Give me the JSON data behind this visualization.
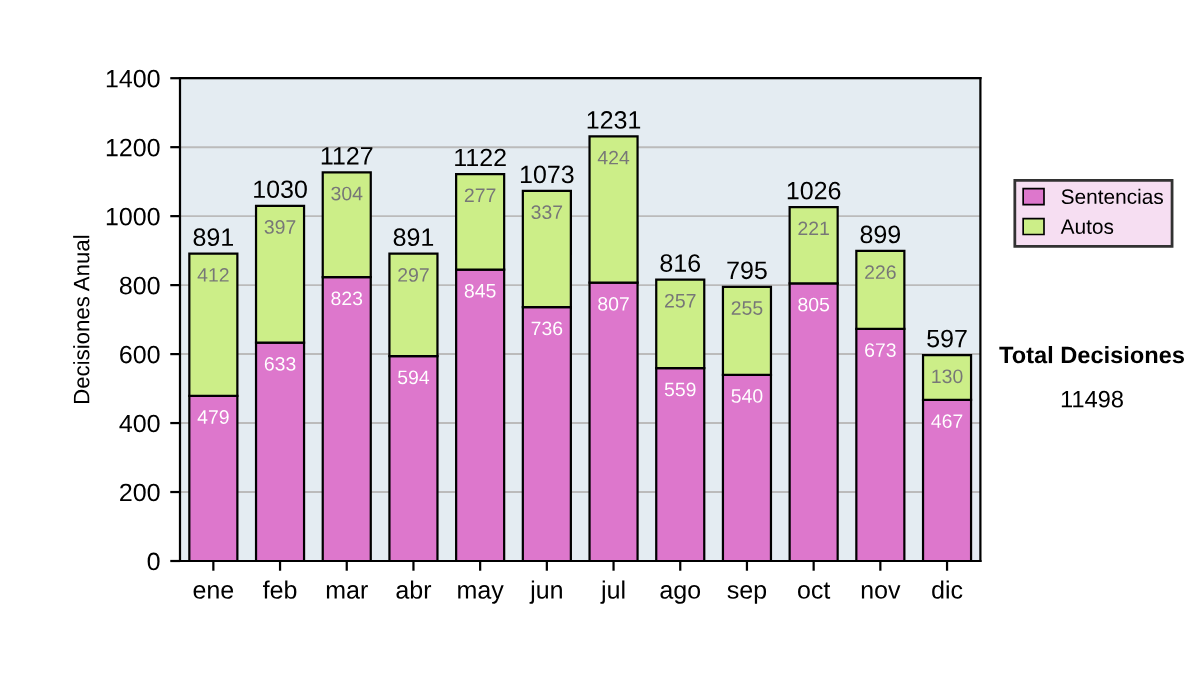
{
  "chart_data": {
    "type": "bar",
    "stacked": true,
    "ylabel": "Decisiones Anual",
    "categories": [
      "ene",
      "feb",
      "mar",
      "abr",
      "may",
      "jun",
      "jul",
      "ago",
      "sep",
      "oct",
      "nov",
      "dic"
    ],
    "series": [
      {
        "name": "Sentencias",
        "color": "#dd77cc",
        "values": [
          479,
          633,
          823,
          594,
          845,
          736,
          807,
          559,
          540,
          805,
          673,
          467
        ]
      },
      {
        "name": "Autos",
        "color": "#ccee88",
        "values": [
          412,
          397,
          304,
          297,
          277,
          337,
          424,
          257,
          255,
          221,
          226,
          130
        ]
      }
    ],
    "data_labels": true,
    "totals": [
      "891",
      "1030",
      "1127",
      "891",
      "1122",
      "1073",
      "1231",
      "816",
      "795",
      "1026",
      "899",
      "597"
    ],
    "ylim": [
      0,
      1400
    ],
    "yticks": [
      0,
      200,
      400,
      600,
      800,
      1000,
      1200,
      1400
    ],
    "grid": "y",
    "legend": "right",
    "annotations": [
      "Total Decisiones",
      "11498"
    ]
  }
}
